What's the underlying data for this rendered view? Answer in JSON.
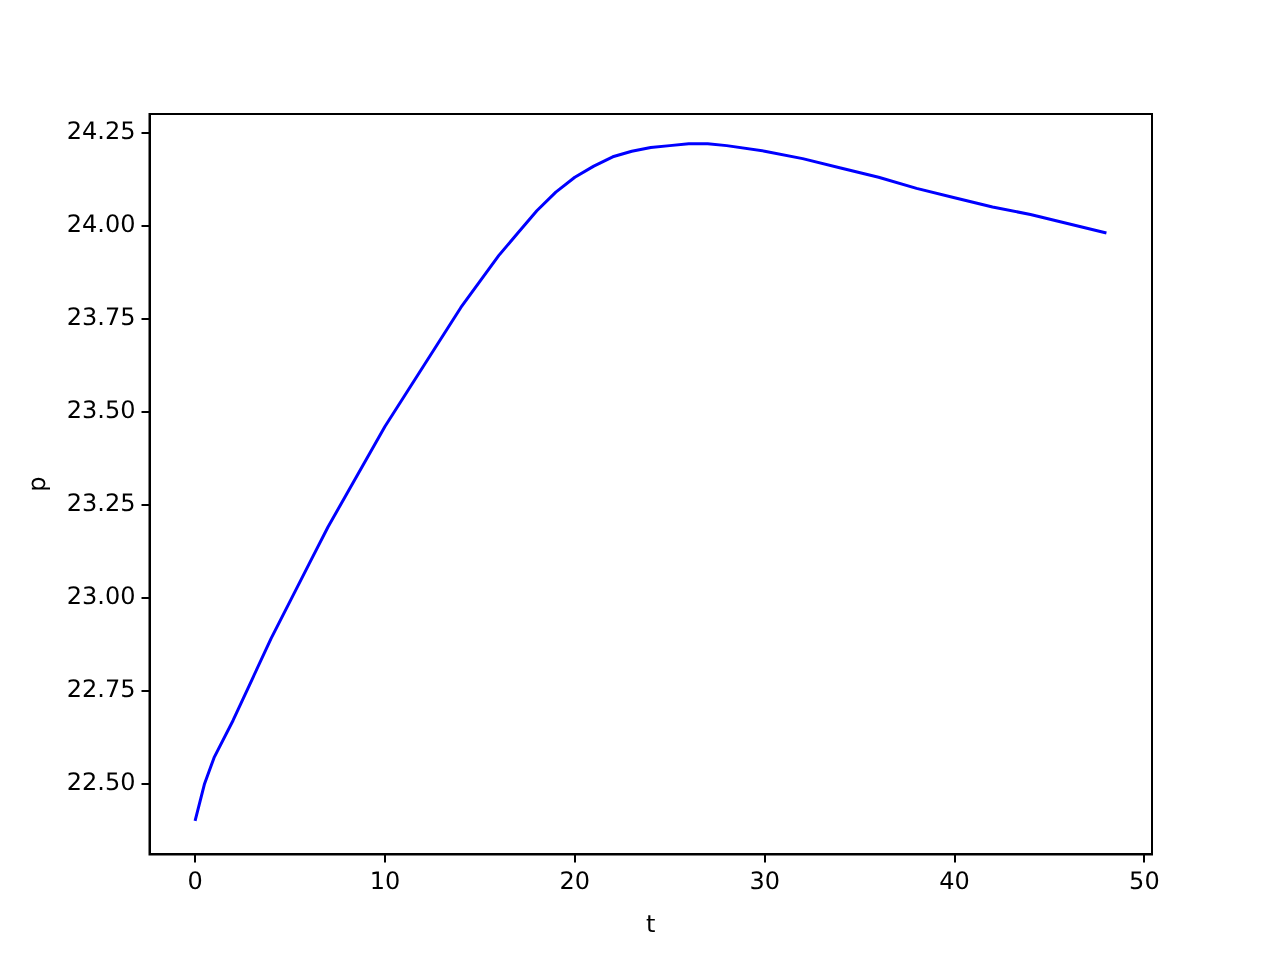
{
  "chart_data": {
    "type": "line",
    "xlabel": "t",
    "ylabel": "p",
    "x": [
      0,
      0.5,
      1,
      2,
      3,
      4,
      5,
      6,
      7,
      8,
      9,
      10,
      11,
      12,
      13,
      14,
      15,
      16,
      17,
      18,
      19,
      20,
      21,
      22,
      23,
      24,
      25,
      26,
      27,
      28,
      30,
      32,
      34,
      36,
      38,
      40,
      42,
      44,
      46,
      48
    ],
    "series": [
      {
        "color": "#0000ff",
        "values": [
          22.4,
          22.5,
          22.57,
          22.67,
          22.78,
          22.89,
          22.99,
          23.09,
          23.19,
          23.28,
          23.37,
          23.46,
          23.54,
          23.62,
          23.7,
          23.78,
          23.85,
          23.92,
          23.98,
          24.04,
          24.09,
          24.13,
          24.16,
          24.185,
          24.2,
          24.21,
          24.215,
          24.22,
          24.22,
          24.215,
          24.2,
          24.18,
          24.155,
          24.13,
          24.1,
          24.075,
          24.05,
          24.03,
          24.005,
          23.98
        ]
      }
    ],
    "xlim": [
      -2.4,
      50.4
    ],
    "xticks": [
      0,
      10,
      20,
      30,
      40,
      50
    ],
    "ylim": [
      22.31,
      24.3
    ],
    "yticks": [
      {
        "value": 22.5,
        "label": "22.50"
      },
      {
        "value": 22.75,
        "label": "22.75"
      },
      {
        "value": 23,
        "label": "23.00"
      },
      {
        "value": 23.25,
        "label": "23.25"
      },
      {
        "value": 23.5,
        "label": "23.50"
      },
      {
        "value": 23.75,
        "label": "23.75"
      },
      {
        "value": 24,
        "label": "24.00"
      },
      {
        "value": 24.25,
        "label": "24.25"
      }
    ],
    "grid": false,
    "legend": false,
    "line_style": "solid",
    "marker": "none"
  }
}
